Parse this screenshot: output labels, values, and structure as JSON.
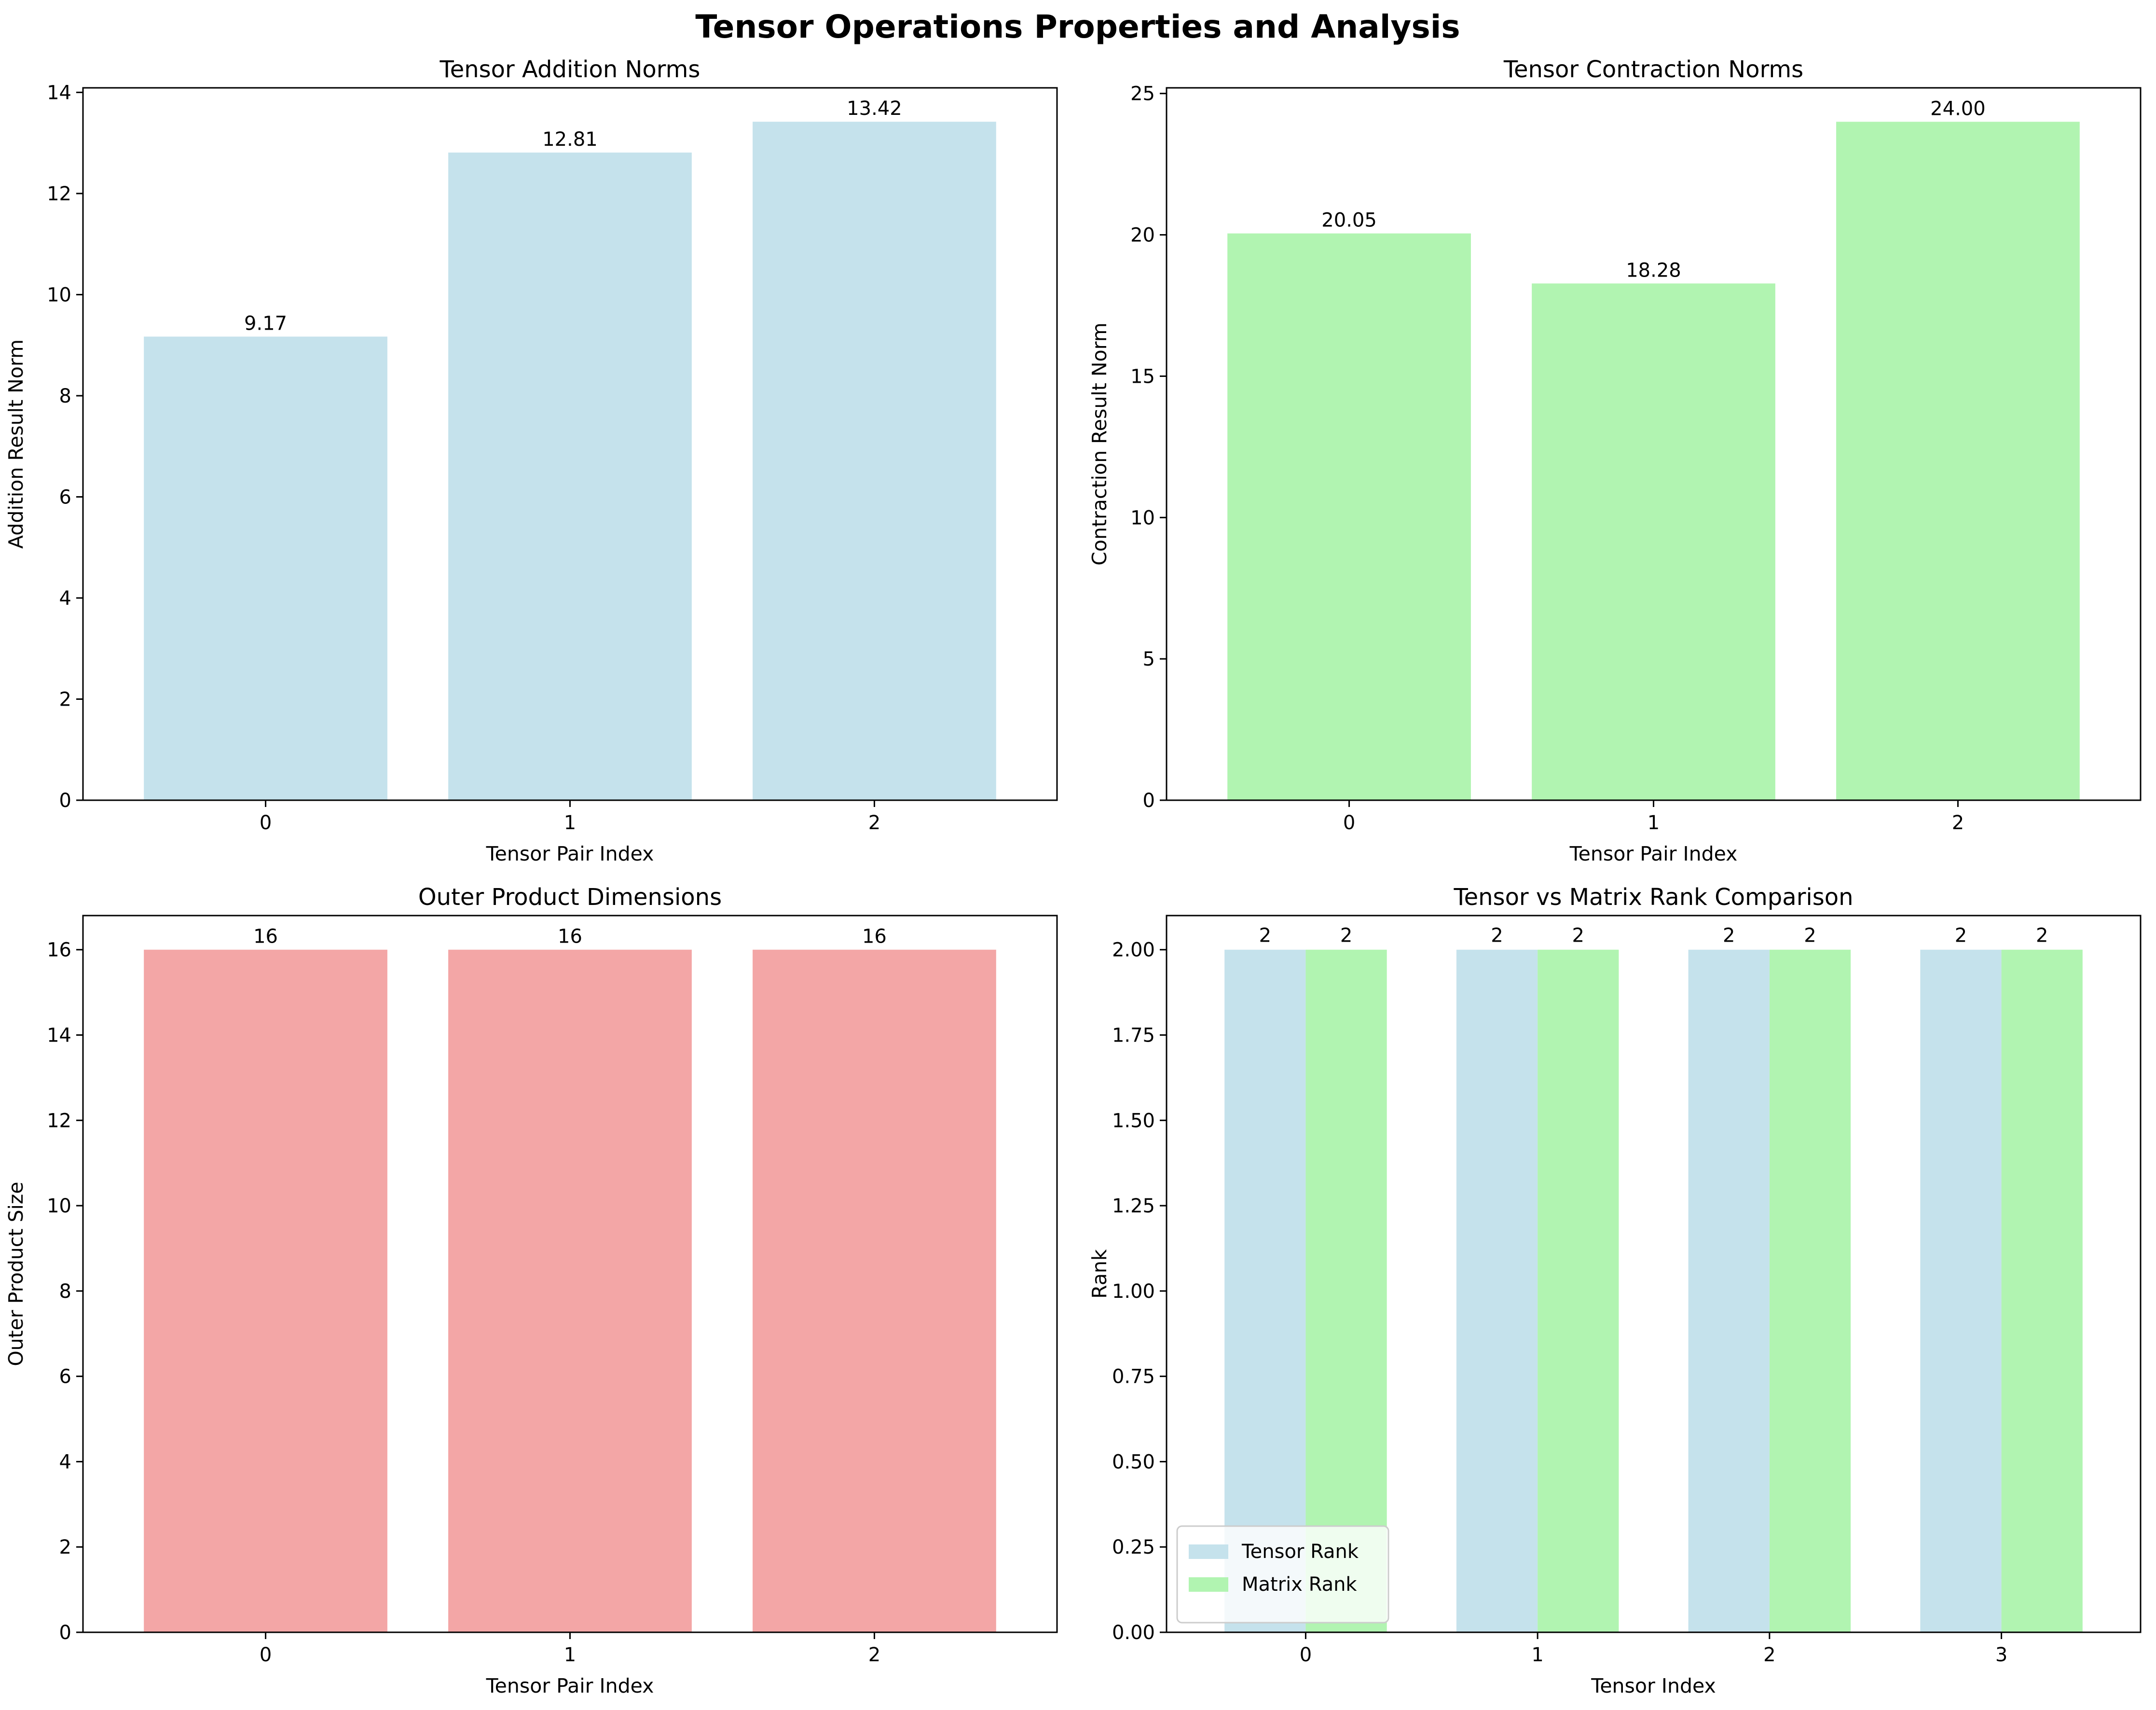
{
  "figure_title": "Tensor Operations Properties and Analysis",
  "colors": {
    "lightblue": "#c5e2ec",
    "lightgreen": "#b1f4b1",
    "lightcoral": "#f3a6a6",
    "legend_border": "#cccccc"
  },
  "chart_data": [
    {
      "id": "addition",
      "type": "bar",
      "title": "Tensor Addition Norms",
      "xlabel": "Tensor Pair Index",
      "ylabel": "Addition Result Norm",
      "categories": [
        "0",
        "1",
        "2"
      ],
      "values": [
        9.17,
        12.81,
        13.42
      ],
      "value_labels": [
        "9.17",
        "12.81",
        "13.42"
      ],
      "ylim": [
        0,
        14.09
      ],
      "yticks": [
        0,
        2,
        4,
        6,
        8,
        10,
        12,
        14
      ],
      "ytick_labels": [
        "0",
        "2",
        "4",
        "6",
        "8",
        "10",
        "12",
        "14"
      ],
      "color": "lightblue"
    },
    {
      "id": "contraction",
      "type": "bar",
      "title": "Tensor Contraction Norms",
      "xlabel": "Tensor Pair Index",
      "ylabel": "Contraction Result Norm",
      "categories": [
        "0",
        "1",
        "2"
      ],
      "values": [
        20.05,
        18.28,
        24.0
      ],
      "value_labels": [
        "20.05",
        "18.28",
        "24.00"
      ],
      "ylim": [
        0,
        25.2
      ],
      "yticks": [
        0,
        5,
        10,
        15,
        20,
        25
      ],
      "ytick_labels": [
        "0",
        "5",
        "10",
        "15",
        "20",
        "25"
      ],
      "color": "lightgreen"
    },
    {
      "id": "outer",
      "type": "bar",
      "title": "Outer Product Dimensions",
      "xlabel": "Tensor Pair Index",
      "ylabel": "Outer Product Size",
      "categories": [
        "0",
        "1",
        "2"
      ],
      "values": [
        16,
        16,
        16
      ],
      "value_labels": [
        "16",
        "16",
        "16"
      ],
      "ylim": [
        0,
        16.8
      ],
      "yticks": [
        0,
        2,
        4,
        6,
        8,
        10,
        12,
        14,
        16
      ],
      "ytick_labels": [
        "0",
        "2",
        "4",
        "6",
        "8",
        "10",
        "12",
        "14",
        "16"
      ],
      "color": "lightcoral"
    },
    {
      "id": "rank",
      "type": "bar",
      "title": "Tensor vs Matrix Rank Comparison",
      "xlabel": "Tensor Index",
      "ylabel": "Rank",
      "categories": [
        "0",
        "1",
        "2",
        "3"
      ],
      "series": [
        {
          "name": "Tensor Rank",
          "values": [
            2,
            2,
            2,
            2
          ],
          "value_labels": [
            "2",
            "2",
            "2",
            "2"
          ],
          "color": "lightblue"
        },
        {
          "name": "Matrix Rank",
          "values": [
            2,
            2,
            2,
            2
          ],
          "value_labels": [
            "2",
            "2",
            "2",
            "2"
          ],
          "color": "lightgreen"
        }
      ],
      "ylim": [
        0,
        2.1
      ],
      "yticks": [
        0,
        0.25,
        0.5,
        0.75,
        1.0,
        1.25,
        1.5,
        1.75,
        2.0
      ],
      "ytick_labels": [
        "0.00",
        "0.25",
        "0.50",
        "0.75",
        "1.00",
        "1.25",
        "1.50",
        "1.75",
        "2.00"
      ],
      "legend_position": "lower-left"
    }
  ]
}
